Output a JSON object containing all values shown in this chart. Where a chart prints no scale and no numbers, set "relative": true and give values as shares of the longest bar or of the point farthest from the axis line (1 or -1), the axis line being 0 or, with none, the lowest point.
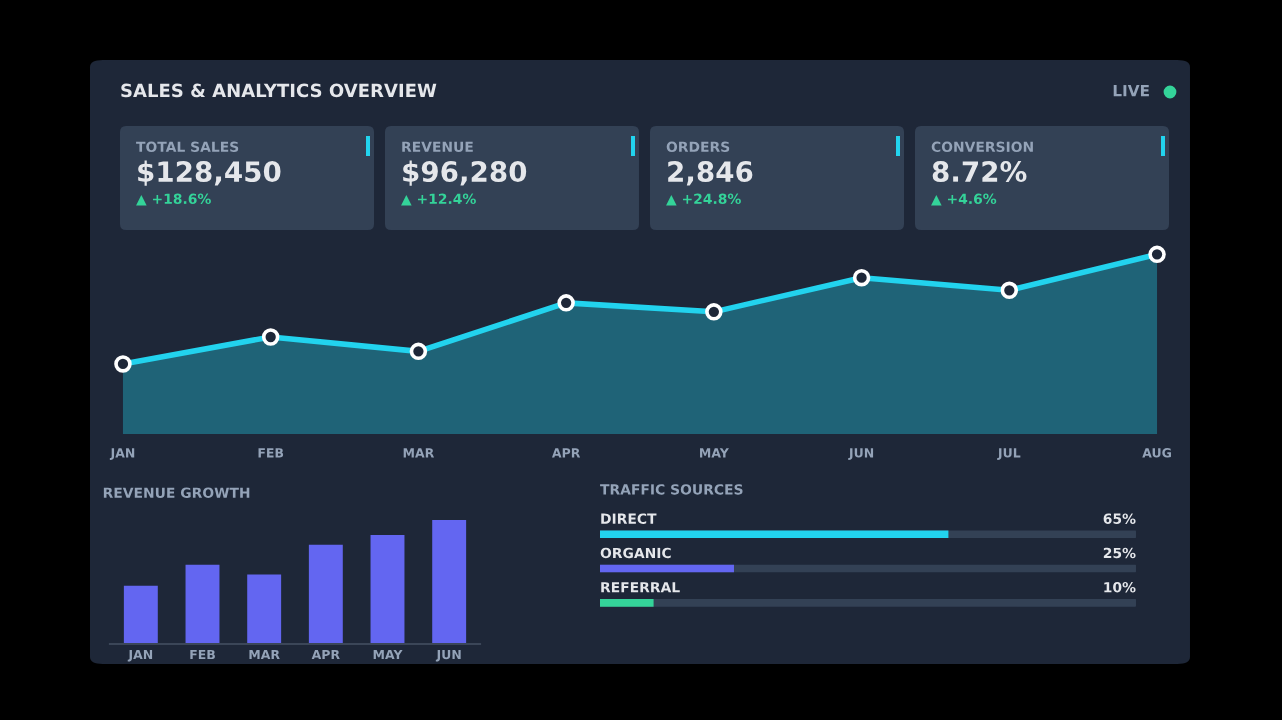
{
  "chart_data": [
    {
      "type": "other",
      "title": "SALES & ANALYTICS OVERVIEW",
      "annotations": [
        "LIVE",
        "TOTAL SALES",
        "$128,450",
        "▲ +18.6%",
        "REVENUE",
        "$96,280",
        "▲ +12.4%",
        "ORDERS",
        "2,846",
        "▲ +24.8%",
        "CONVERSION",
        "8.72%",
        "▲ +4.6%"
      ]
    },
    {
      "type": "area",
      "relative": true,
      "categories": [
        "JAN",
        "FEB",
        "MAR",
        "APR",
        "MAY",
        "JUN",
        "JUL",
        "AUG"
      ],
      "marker": "circle",
      "grid": false,
      "series": [
        {
          "color": "#22d3ee",
          "values": [
            0.39,
            0.54,
            0.46,
            0.73,
            0.68,
            0.87,
            0.8,
            1.0
          ]
        }
      ]
    },
    {
      "type": "bar",
      "relative": true,
      "title": "REVENUE GROWTH",
      "categories": [
        "JAN",
        "FEB",
        "MAR",
        "APR",
        "MAY",
        "JUN"
      ],
      "grid": false,
      "series": [
        {
          "color": "#6366f1",
          "values": [
            0.47,
            0.64,
            0.56,
            0.8,
            0.88,
            1.0
          ]
        }
      ]
    },
    {
      "type": "bar",
      "orientation": "horizontal",
      "title": "TRAFFIC SOURCES",
      "categories": [
        "DIRECT",
        "ORGANIC",
        "REFERRAL"
      ],
      "xlim": [
        0,
        100
      ],
      "tick_labels": false,
      "grid": false,
      "series": [
        {
          "colors": [
            "#22d3ee",
            "#6366f1",
            "#34d399"
          ],
          "values": [
            65,
            25,
            10
          ],
          "value_labels": [
            "65%",
            "25%",
            "10%"
          ]
        }
      ]
    }
  ]
}
